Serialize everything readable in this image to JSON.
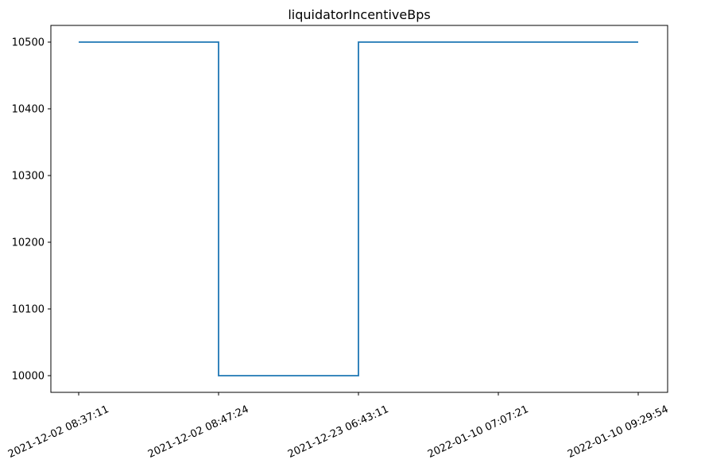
{
  "chart_data": {
    "type": "line",
    "drawstyle": "steps-post",
    "title": "liquidatorIncentiveBps",
    "xlabel": "",
    "ylabel": "",
    "x_ticks": [
      "2021-12-02 08:37:11",
      "2021-12-02 08:47:24",
      "2021-12-23 06:43:11",
      "2022-01-10 07:07:21",
      "2022-01-10 09:29:54"
    ],
    "y_ticks": [
      10000,
      10100,
      10200,
      10300,
      10400,
      10500
    ],
    "ylim": [
      9975,
      10525
    ],
    "grid": false,
    "legend": "none",
    "series": [
      {
        "color": "#1f77b4",
        "values": [
          10500,
          10000,
          10500,
          10500,
          10500
        ]
      }
    ]
  }
}
